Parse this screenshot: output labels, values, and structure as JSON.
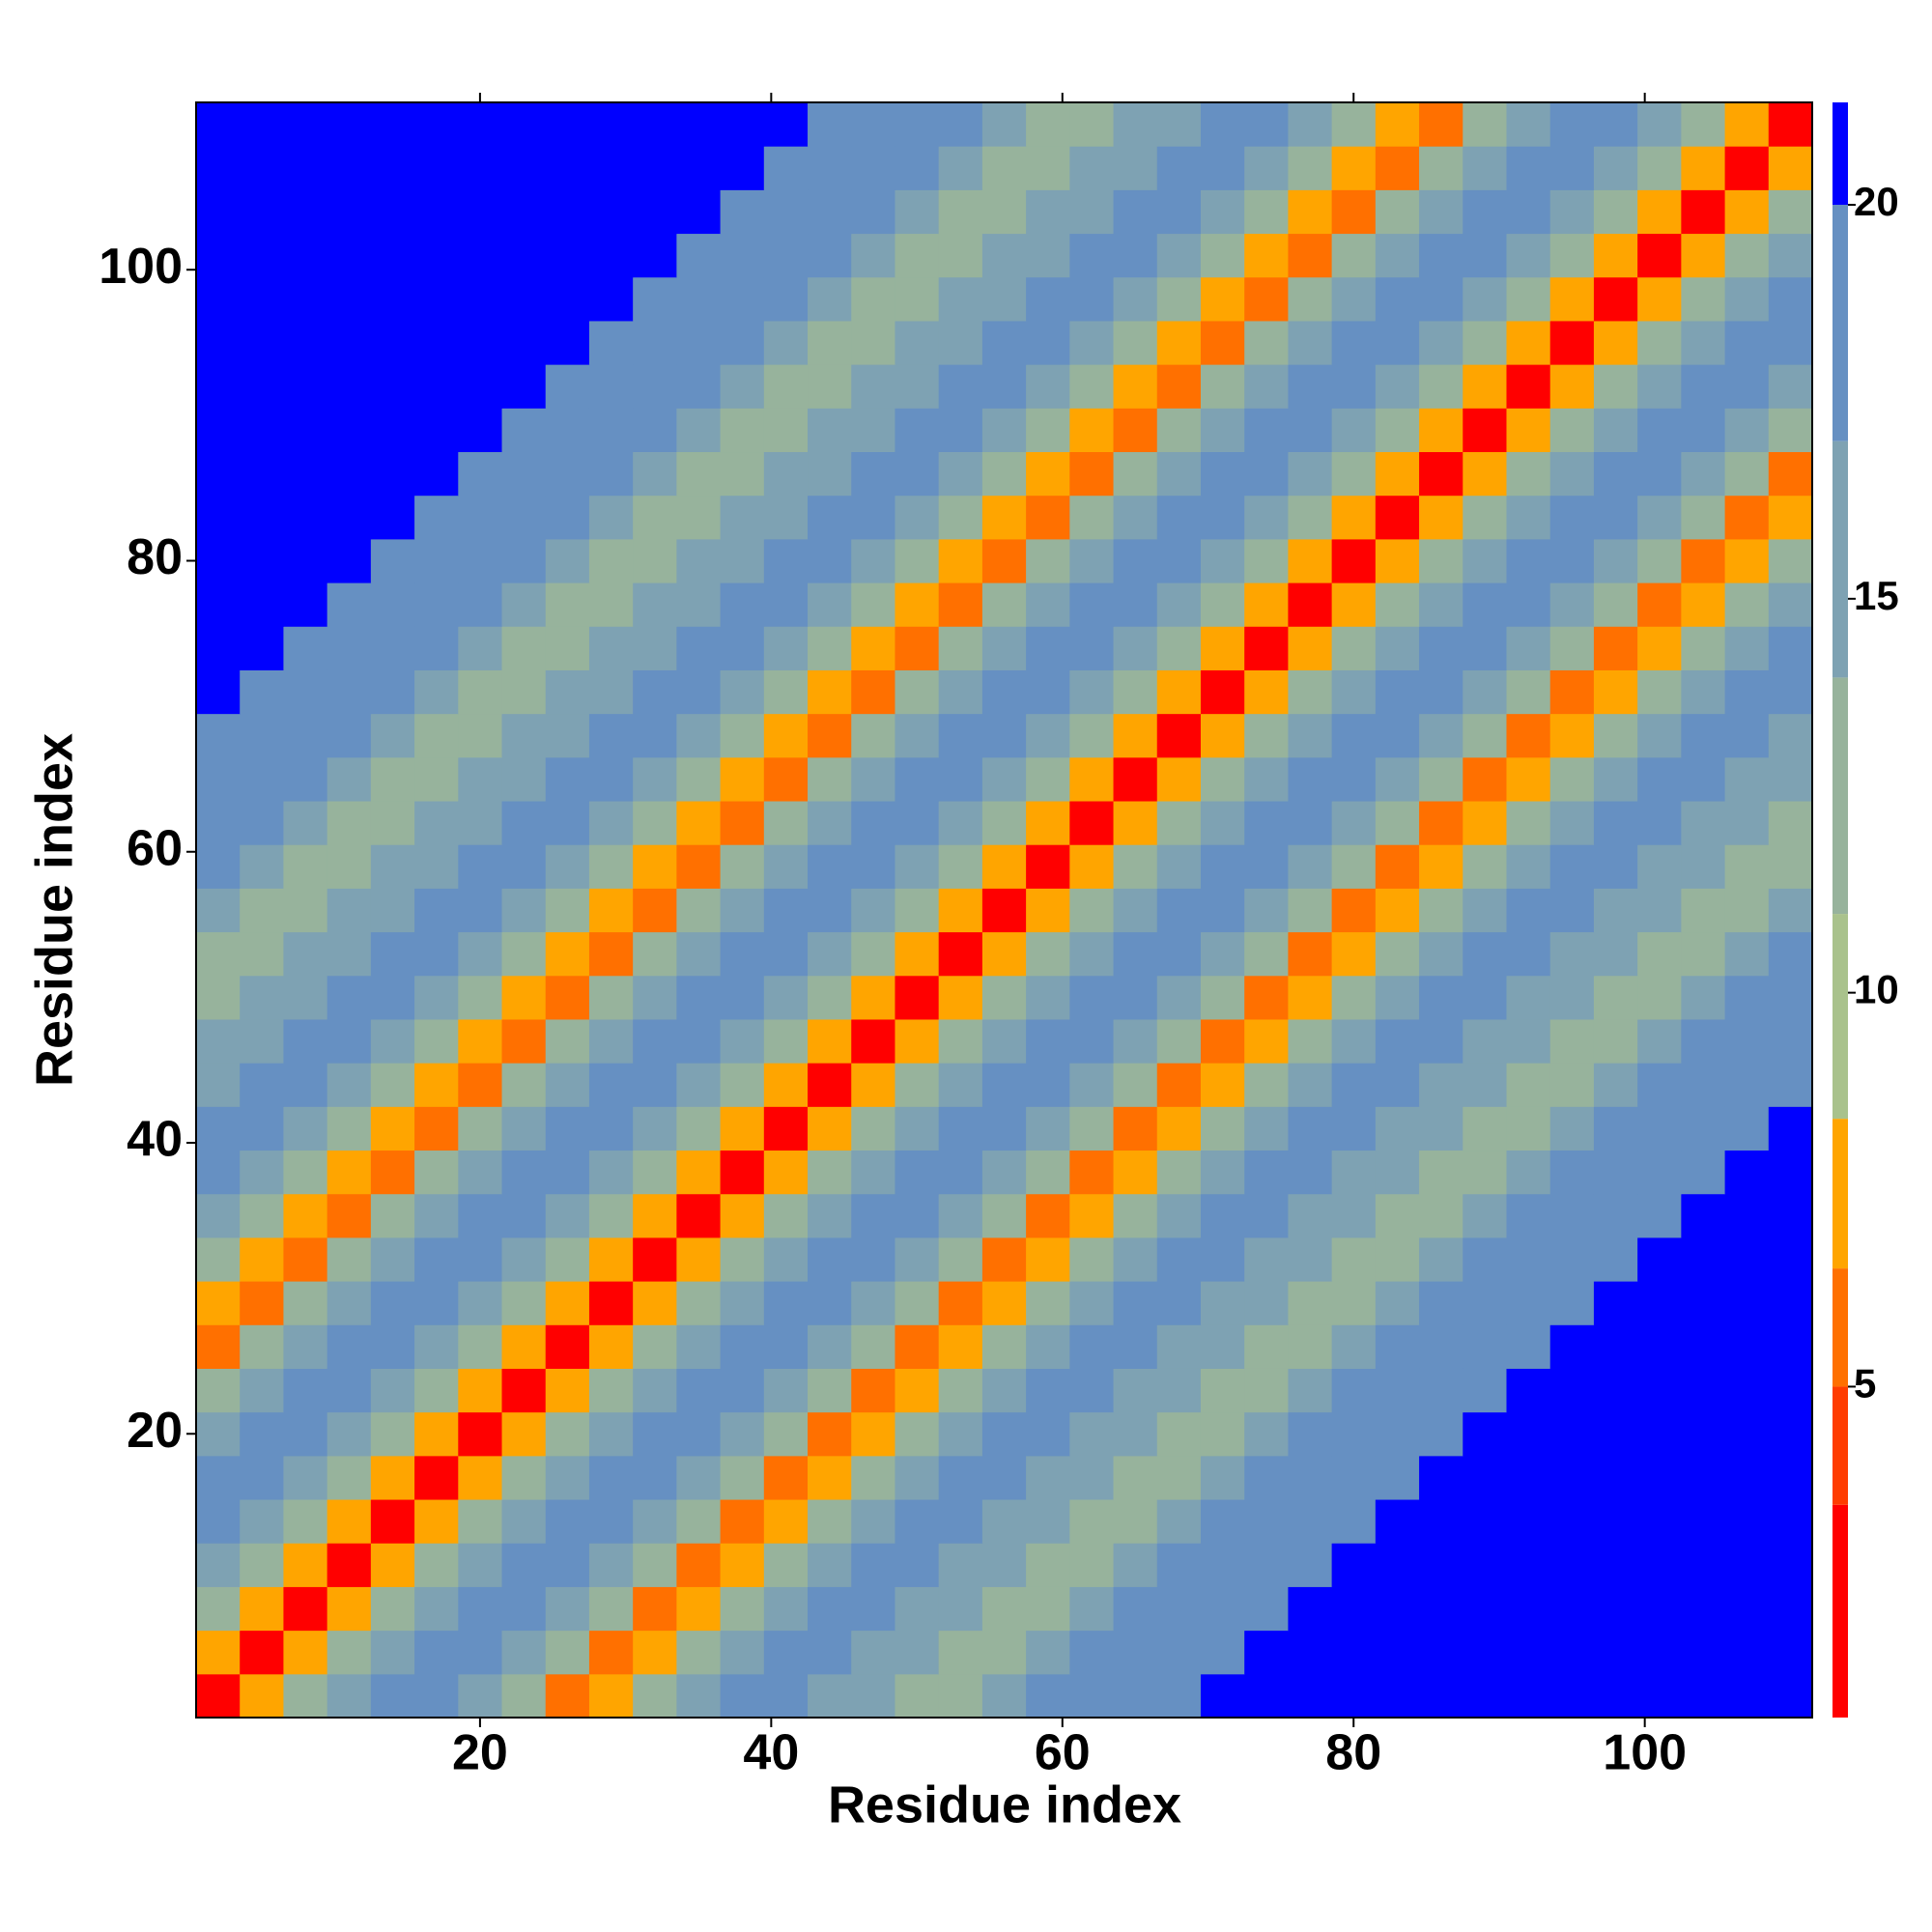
{
  "chart_data": {
    "type": "heatmap",
    "xlabel": "Residue index",
    "ylabel": "Residue index",
    "xlim": [
      0.5,
      111.5
    ],
    "ylim": [
      0.5,
      111.5
    ],
    "xticks": [
      20,
      40,
      60,
      80,
      100
    ],
    "yticks": [
      20,
      40,
      60,
      80,
      100
    ],
    "x": [
      2,
      5,
      8,
      11,
      14,
      17,
      20,
      23,
      26,
      29,
      32,
      35,
      38,
      41,
      44,
      47,
      50,
      53,
      56,
      59,
      62,
      65,
      68,
      71,
      74,
      77,
      80,
      83,
      86,
      89,
      92,
      95,
      98,
      101,
      104,
      107,
      110
    ],
    "y": [
      2,
      5,
      8,
      11,
      14,
      17,
      20,
      23,
      26,
      29,
      32,
      35,
      38,
      41,
      44,
      47,
      50,
      53,
      56,
      59,
      62,
      65,
      68,
      71,
      74,
      77,
      80,
      83,
      86,
      89,
      92,
      95,
      98,
      101,
      104,
      107,
      110
    ],
    "zlim": [
      0.8,
      21.3
    ],
    "zticks": [
      5,
      10,
      15,
      20
    ],
    "colorscale": [
      {
        "value": 0.8,
        "color": "#ff0000"
      },
      {
        "value": 3.5,
        "color": "#ff3c00"
      },
      {
        "value": 5,
        "color": "#ff7000"
      },
      {
        "value": 6.5,
        "color": "#ffa500"
      },
      {
        "value": 8.4,
        "color": "#a9c28c"
      },
      {
        "value": 11,
        "color": "#97b39c"
      },
      {
        "value": 14,
        "color": "#7ea2b3"
      },
      {
        "value": 17,
        "color": "#6690c2"
      },
      {
        "value": 20,
        "color": "#0000ff"
      }
    ],
    "z": [
      [
        2,
        7,
        12,
        16,
        17,
        18,
        16,
        11,
        6,
        8,
        13,
        16,
        18,
        17,
        16,
        14,
        12,
        13,
        15,
        17,
        18,
        19,
        19,
        20,
        20,
        21,
        21,
        21,
        21,
        21,
        21,
        21,
        21,
        21,
        21,
        21,
        21
      ],
      [
        7,
        2,
        7,
        12,
        16,
        17,
        18,
        16,
        11,
        6,
        8,
        13,
        16,
        18,
        17,
        16,
        14,
        12,
        13,
        15,
        17,
        18,
        19,
        19,
        20,
        20,
        21,
        21,
        21,
        21,
        21,
        21,
        21,
        21,
        21,
        21,
        21
      ],
      [
        12,
        7,
        2,
        7,
        12,
        16,
        17,
        18,
        16,
        11,
        6,
        8,
        13,
        16,
        18,
        17,
        16,
        14,
        12,
        13,
        15,
        17,
        18,
        19,
        19,
        20,
        20,
        21,
        21,
        21,
        21,
        21,
        21,
        21,
        21,
        21,
        21
      ],
      [
        16,
        12,
        7,
        2,
        7,
        12,
        16,
        17,
        18,
        16,
        11,
        6,
        8,
        13,
        16,
        18,
        17,
        16,
        14,
        12,
        13,
        15,
        17,
        18,
        19,
        19,
        20,
        20,
        21,
        21,
        21,
        21,
        21,
        21,
        21,
        21,
        21
      ],
      [
        17,
        16,
        12,
        7,
        2,
        7,
        12,
        16,
        17,
        18,
        16,
        11,
        6,
        8,
        13,
        16,
        18,
        17,
        16,
        14,
        12,
        13,
        15,
        17,
        18,
        19,
        19,
        20,
        20,
        21,
        21,
        21,
        21,
        21,
        21,
        21,
        21
      ],
      [
        18,
        17,
        16,
        12,
        7,
        2,
        7,
        12,
        16,
        17,
        18,
        16,
        11,
        6,
        8,
        13,
        16,
        18,
        17,
        16,
        14,
        12,
        13,
        15,
        17,
        18,
        19,
        19,
        20,
        20,
        21,
        21,
        21,
        21,
        21,
        21,
        21
      ],
      [
        16,
        18,
        17,
        16,
        12,
        7,
        2,
        7,
        12,
        16,
        17,
        18,
        16,
        11,
        6,
        8,
        13,
        16,
        18,
        17,
        16,
        14,
        12,
        13,
        15,
        17,
        18,
        19,
        19,
        20,
        20,
        21,
        21,
        21,
        21,
        21,
        21
      ],
      [
        11,
        16,
        18,
        17,
        16,
        12,
        7,
        2,
        7,
        12,
        16,
        17,
        18,
        16,
        11,
        6,
        8,
        13,
        16,
        18,
        17,
        16,
        14,
        12,
        13,
        15,
        17,
        18,
        19,
        19,
        20,
        20,
        21,
        21,
        21,
        21,
        21
      ],
      [
        6,
        11,
        16,
        18,
        17,
        16,
        12,
        7,
        2,
        7,
        12,
        16,
        17,
        18,
        16,
        11,
        6,
        8,
        13,
        16,
        18,
        17,
        16,
        14,
        12,
        13,
        15,
        17,
        18,
        19,
        19,
        20,
        20,
        21,
        21,
        21,
        21
      ],
      [
        8,
        6,
        11,
        16,
        18,
        17,
        16,
        12,
        7,
        2,
        7,
        12,
        16,
        17,
        18,
        16,
        11,
        6,
        8,
        13,
        16,
        18,
        17,
        16,
        14,
        12,
        13,
        15,
        17,
        18,
        19,
        19,
        20,
        20,
        21,
        21,
        21
      ],
      [
        13,
        8,
        6,
        11,
        16,
        18,
        17,
        16,
        12,
        7,
        2,
        7,
        12,
        16,
        17,
        18,
        16,
        11,
        6,
        8,
        13,
        16,
        18,
        17,
        16,
        14,
        12,
        13,
        15,
        17,
        18,
        19,
        19,
        20,
        20,
        21,
        21
      ],
      [
        16,
        13,
        8,
        6,
        11,
        16,
        18,
        17,
        16,
        12,
        7,
        2,
        7,
        12,
        16,
        17,
        18,
        16,
        11,
        6,
        8,
        13,
        16,
        18,
        17,
        16,
        14,
        12,
        13,
        15,
        17,
        18,
        19,
        19,
        20,
        20,
        21
      ],
      [
        18,
        16,
        13,
        8,
        6,
        11,
        16,
        18,
        17,
        16,
        12,
        7,
        2,
        7,
        12,
        16,
        17,
        18,
        16,
        11,
        6,
        8,
        13,
        16,
        18,
        17,
        16,
        14,
        12,
        13,
        15,
        17,
        18,
        19,
        19,
        20,
        20
      ],
      [
        17,
        18,
        16,
        13,
        8,
        6,
        11,
        16,
        18,
        17,
        16,
        12,
        7,
        2,
        7,
        12,
        16,
        17,
        18,
        16,
        11,
        6,
        8,
        13,
        16,
        18,
        17,
        16,
        14,
        12,
        13,
        15,
        17,
        18,
        19,
        19,
        20
      ],
      [
        16,
        17,
        18,
        16,
        13,
        8,
        6,
        11,
        16,
        18,
        17,
        16,
        12,
        7,
        2,
        7,
        12,
        16,
        17,
        18,
        16,
        11,
        6,
        8,
        13,
        16,
        18,
        17,
        16,
        14,
        12,
        13,
        15,
        17,
        18,
        19,
        19
      ],
      [
        14,
        16,
        17,
        18,
        16,
        13,
        8,
        6,
        11,
        16,
        18,
        17,
        16,
        12,
        7,
        2,
        7,
        12,
        16,
        17,
        18,
        16,
        11,
        6,
        8,
        13,
        16,
        18,
        17,
        16,
        14,
        12,
        13,
        15,
        17,
        18,
        19
      ],
      [
        12,
        14,
        16,
        17,
        18,
        16,
        13,
        8,
        6,
        11,
        16,
        18,
        17,
        16,
        12,
        7,
        2,
        7,
        12,
        16,
        17,
        18,
        16,
        11,
        6,
        8,
        13,
        16,
        18,
        17,
        16,
        14,
        12,
        13,
        15,
        17,
        18
      ],
      [
        13,
        12,
        14,
        16,
        17,
        18,
        16,
        13,
        8,
        6,
        11,
        16,
        18,
        17,
        16,
        12,
        7,
        2,
        7,
        12,
        16,
        17,
        18,
        16,
        11,
        6,
        8,
        13,
        16,
        18,
        17,
        16,
        14,
        12,
        13,
        15,
        17
      ],
      [
        15,
        13,
        12,
        14,
        16,
        17,
        18,
        16,
        13,
        8,
        6,
        11,
        16,
        18,
        17,
        16,
        12,
        7,
        2,
        7,
        12,
        16,
        17,
        18,
        16,
        11,
        6,
        8,
        13,
        16,
        18,
        17,
        16,
        14,
        12,
        13,
        15
      ],
      [
        17,
        15,
        13,
        12,
        14,
        16,
        17,
        18,
        16,
        13,
        8,
        6,
        11,
        16,
        18,
        17,
        16,
        12,
        7,
        2,
        7,
        12,
        16,
        17,
        18,
        16,
        11,
        6,
        8,
        13,
        16,
        18,
        17,
        16,
        14,
        12,
        13
      ],
      [
        18,
        17,
        15,
        13,
        12,
        14,
        16,
        17,
        18,
        16,
        13,
        8,
        6,
        11,
        16,
        18,
        17,
        16,
        12,
        7,
        2,
        7,
        12,
        16,
        17,
        18,
        16,
        11,
        6,
        8,
        13,
        16,
        18,
        17,
        16,
        14,
        12
      ],
      [
        19,
        18,
        17,
        15,
        13,
        12,
        14,
        16,
        17,
        18,
        16,
        13,
        8,
        6,
        11,
        16,
        18,
        17,
        16,
        12,
        7,
        2,
        7,
        12,
        16,
        17,
        18,
        16,
        11,
        6,
        8,
        13,
        16,
        18,
        17,
        16,
        14
      ],
      [
        19,
        19,
        18,
        17,
        15,
        13,
        12,
        14,
        16,
        17,
        18,
        16,
        13,
        8,
        6,
        11,
        16,
        18,
        17,
        16,
        12,
        7,
        2,
        7,
        12,
        16,
        17,
        18,
        16,
        11,
        6,
        8,
        13,
        16,
        18,
        17,
        16
      ],
      [
        20,
        19,
        19,
        18,
        17,
        15,
        13,
        12,
        14,
        16,
        17,
        18,
        16,
        13,
        8,
        6,
        11,
        16,
        18,
        17,
        16,
        12,
        7,
        2,
        7,
        12,
        16,
        17,
        18,
        16,
        11,
        6,
        8,
        13,
        16,
        18,
        17
      ],
      [
        20,
        20,
        19,
        19,
        18,
        17,
        15,
        13,
        12,
        14,
        16,
        17,
        18,
        16,
        13,
        8,
        6,
        11,
        16,
        18,
        17,
        16,
        12,
        7,
        2,
        7,
        12,
        16,
        17,
        18,
        16,
        11,
        6,
        8,
        13,
        16,
        18
      ],
      [
        21,
        20,
        20,
        19,
        19,
        18,
        17,
        15,
        13,
        12,
        14,
        16,
        17,
        18,
        16,
        13,
        8,
        6,
        11,
        16,
        18,
        17,
        16,
        12,
        7,
        2,
        7,
        12,
        16,
        17,
        18,
        16,
        11,
        6,
        8,
        13,
        16
      ],
      [
        21,
        21,
        20,
        20,
        19,
        19,
        18,
        17,
        15,
        13,
        12,
        14,
        16,
        17,
        18,
        16,
        13,
        8,
        6,
        11,
        16,
        18,
        17,
        16,
        12,
        7,
        2,
        7,
        12,
        16,
        17,
        18,
        16,
        11,
        6,
        8,
        13
      ],
      [
        21,
        21,
        21,
        20,
        20,
        19,
        19,
        18,
        17,
        15,
        13,
        12,
        14,
        16,
        17,
        18,
        16,
        13,
        8,
        6,
        11,
        16,
        18,
        17,
        16,
        12,
        7,
        2,
        7,
        12,
        16,
        17,
        18,
        16,
        11,
        6,
        8
      ],
      [
        21,
        21,
        21,
        21,
        20,
        20,
        19,
        19,
        18,
        17,
        15,
        13,
        12,
        14,
        16,
        17,
        18,
        16,
        13,
        8,
        6,
        11,
        16,
        18,
        17,
        16,
        12,
        7,
        2,
        7,
        12,
        16,
        17,
        18,
        16,
        11,
        6
      ],
      [
        21,
        21,
        21,
        21,
        21,
        20,
        20,
        19,
        19,
        18,
        17,
        15,
        13,
        12,
        14,
        16,
        17,
        18,
        16,
        13,
        8,
        6,
        11,
        16,
        18,
        17,
        16,
        12,
        7,
        2,
        7,
        12,
        16,
        17,
        18,
        16,
        11
      ],
      [
        21,
        21,
        21,
        21,
        21,
        21,
        20,
        20,
        19,
        19,
        18,
        17,
        15,
        13,
        12,
        14,
        16,
        17,
        18,
        16,
        13,
        8,
        6,
        11,
        16,
        18,
        17,
        16,
        12,
        7,
        2,
        7,
        12,
        16,
        17,
        18,
        16
      ],
      [
        21,
        21,
        21,
        21,
        21,
        21,
        21,
        20,
        20,
        19,
        19,
        18,
        17,
        15,
        13,
        12,
        14,
        16,
        17,
        18,
        16,
        13,
        8,
        6,
        11,
        16,
        18,
        17,
        16,
        12,
        7,
        2,
        7,
        12,
        16,
        17,
        18
      ],
      [
        21,
        21,
        21,
        21,
        21,
        21,
        21,
        21,
        20,
        20,
        19,
        19,
        18,
        17,
        15,
        13,
        12,
        14,
        16,
        17,
        18,
        16,
        13,
        8,
        6,
        11,
        16,
        18,
        17,
        16,
        12,
        7,
        2,
        7,
        12,
        16,
        17
      ],
      [
        21,
        21,
        21,
        21,
        21,
        21,
        21,
        21,
        21,
        20,
        20,
        19,
        19,
        18,
        17,
        15,
        13,
        12,
        14,
        16,
        17,
        18,
        16,
        13,
        8,
        6,
        11,
        16,
        18,
        17,
        16,
        12,
        7,
        2,
        7,
        12,
        16
      ],
      [
        21,
        21,
        21,
        21,
        21,
        21,
        21,
        21,
        21,
        21,
        20,
        20,
        19,
        19,
        18,
        17,
        15,
        13,
        12,
        14,
        16,
        17,
        18,
        16,
        13,
        8,
        6,
        11,
        16,
        18,
        17,
        16,
        12,
        7,
        2,
        7,
        12
      ],
      [
        21,
        21,
        21,
        21,
        21,
        21,
        21,
        21,
        21,
        21,
        21,
        20,
        20,
        19,
        19,
        18,
        17,
        15,
        13,
        12,
        14,
        16,
        17,
        18,
        16,
        13,
        8,
        6,
        11,
        16,
        18,
        17,
        16,
        12,
        7,
        2,
        7
      ],
      [
        21,
        21,
        21,
        21,
        21,
        21,
        21,
        21,
        21,
        21,
        21,
        21,
        20,
        20,
        19,
        19,
        18,
        17,
        15,
        13,
        12,
        14,
        16,
        17,
        18,
        16,
        13,
        8,
        6,
        11,
        16,
        18,
        17,
        16,
        12,
        7,
        2
      ]
    ]
  }
}
